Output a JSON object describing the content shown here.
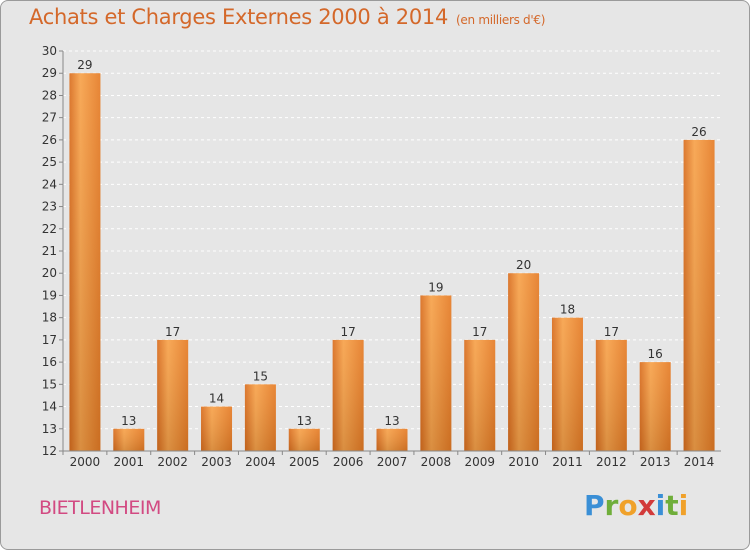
{
  "header": {
    "title": "Achats et Charges Externes 2000 à 2014",
    "unit": "(en milliers d'€)"
  },
  "footer": {
    "commune": "BIETLENHEIM",
    "logo_letters": [
      "P",
      "r",
      "o",
      "x",
      "i",
      "t",
      "i"
    ],
    "logo_colors": [
      "#3a8fd6",
      "#6fae3a",
      "#f0a12a",
      "#d23a3a",
      "#3a8fd6",
      "#6fae3a",
      "#f0a12a"
    ]
  },
  "chart_data": {
    "type": "bar",
    "categories": [
      "2000",
      "2001",
      "2002",
      "2003",
      "2004",
      "2005",
      "2006",
      "2007",
      "2008",
      "2009",
      "2010",
      "2011",
      "2012",
      "2013",
      "2014"
    ],
    "values": [
      29,
      13,
      17,
      14,
      15,
      13,
      17,
      13,
      19,
      17,
      20,
      18,
      17,
      16,
      26
    ],
    "ylim": [
      12,
      30
    ],
    "yticks": [
      12,
      13,
      14,
      15,
      16,
      17,
      18,
      19,
      20,
      21,
      22,
      23,
      24,
      25,
      26,
      27,
      28,
      29,
      30
    ],
    "grid": true,
    "bar_color": "#f08a30",
    "title": "Achats et Charges Externes 2000 à 2014",
    "xlabel": "",
    "ylabel": ""
  }
}
